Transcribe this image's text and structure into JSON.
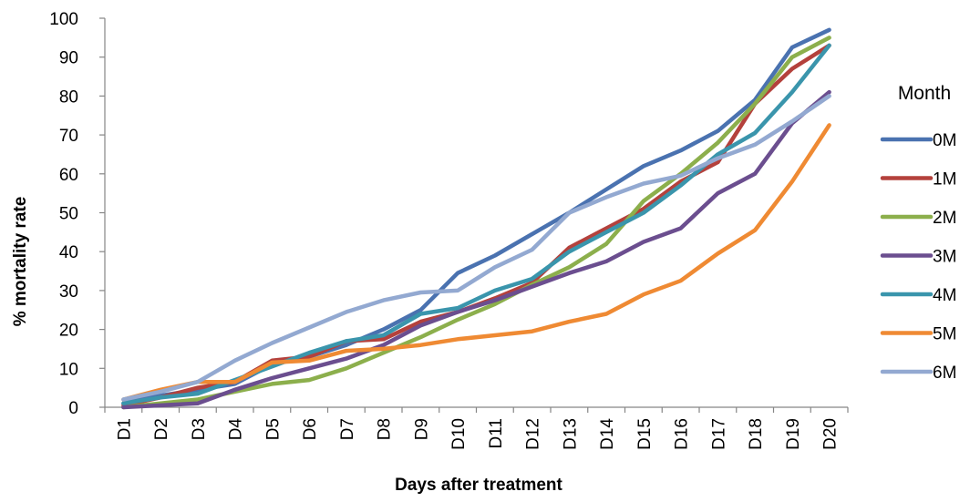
{
  "chart_data": {
    "type": "line",
    "title": "",
    "xlabel": "Days after treatment",
    "ylabel": "% mortality rate",
    "ylim": [
      0,
      100
    ],
    "yticks": [
      0,
      10,
      20,
      30,
      40,
      50,
      60,
      70,
      80,
      90,
      100
    ],
    "grid": false,
    "legend_title": "Month",
    "legend_position": "right",
    "categories": [
      "D1",
      "D2",
      "D3",
      "D4",
      "D5",
      "D6",
      "D7",
      "D8",
      "D9",
      "D10",
      "D11",
      "D12",
      "D13",
      "D14",
      "D15",
      "D16",
      "D17",
      "D18",
      "D19",
      "D20"
    ],
    "series": [
      {
        "name": "0M",
        "color": "#4A72B0",
        "values": [
          1,
          3,
          4.5,
          6,
          11,
          13,
          16,
          20,
          25,
          34.5,
          39,
          44.5,
          50,
          56,
          62,
          66,
          71,
          79,
          92.5,
          97
        ]
      },
      {
        "name": "1M",
        "color": "#B4413C",
        "values": [
          0.5,
          2.5,
          5,
          6.5,
          12,
          13,
          17,
          17.5,
          22,
          24.5,
          28,
          32,
          41,
          46,
          51,
          58,
          63,
          78,
          87,
          93
        ]
      },
      {
        "name": "2M",
        "color": "#8CAF4C",
        "values": [
          0,
          1,
          2,
          4,
          6,
          7,
          10,
          14,
          18,
          22.5,
          26.5,
          31.5,
          36,
          42,
          53,
          60,
          68,
          78,
          90,
          95
        ]
      },
      {
        "name": "3M",
        "color": "#6B4E8F",
        "values": [
          0,
          0.5,
          1,
          4.5,
          7.5,
          10,
          12.5,
          16,
          21,
          24.5,
          27.5,
          31,
          34.5,
          37.5,
          42.5,
          46,
          55,
          60,
          73,
          81
        ]
      },
      {
        "name": "4M",
        "color": "#3A95AC",
        "values": [
          1,
          2.5,
          3.5,
          7,
          10.5,
          14,
          17,
          18.5,
          24,
          25.5,
          30,
          33,
          40,
          45,
          50,
          57,
          65,
          70.5,
          81,
          93
        ]
      },
      {
        "name": "5M",
        "color": "#EF8A33",
        "values": [
          2,
          4.5,
          6.5,
          6.5,
          11.5,
          12,
          14.5,
          15,
          16,
          17.5,
          18.5,
          19.5,
          22,
          24,
          29,
          32.5,
          39.5,
          45.5,
          58,
          72.5
        ]
      },
      {
        "name": "6M",
        "color": "#93A9D1",
        "values": [
          2,
          4,
          6.5,
          12,
          16.5,
          20.5,
          24.5,
          27.5,
          29.5,
          30,
          36,
          40.5,
          50,
          54,
          57.5,
          59.5,
          64,
          67.5,
          73.5,
          80
        ]
      }
    ]
  }
}
